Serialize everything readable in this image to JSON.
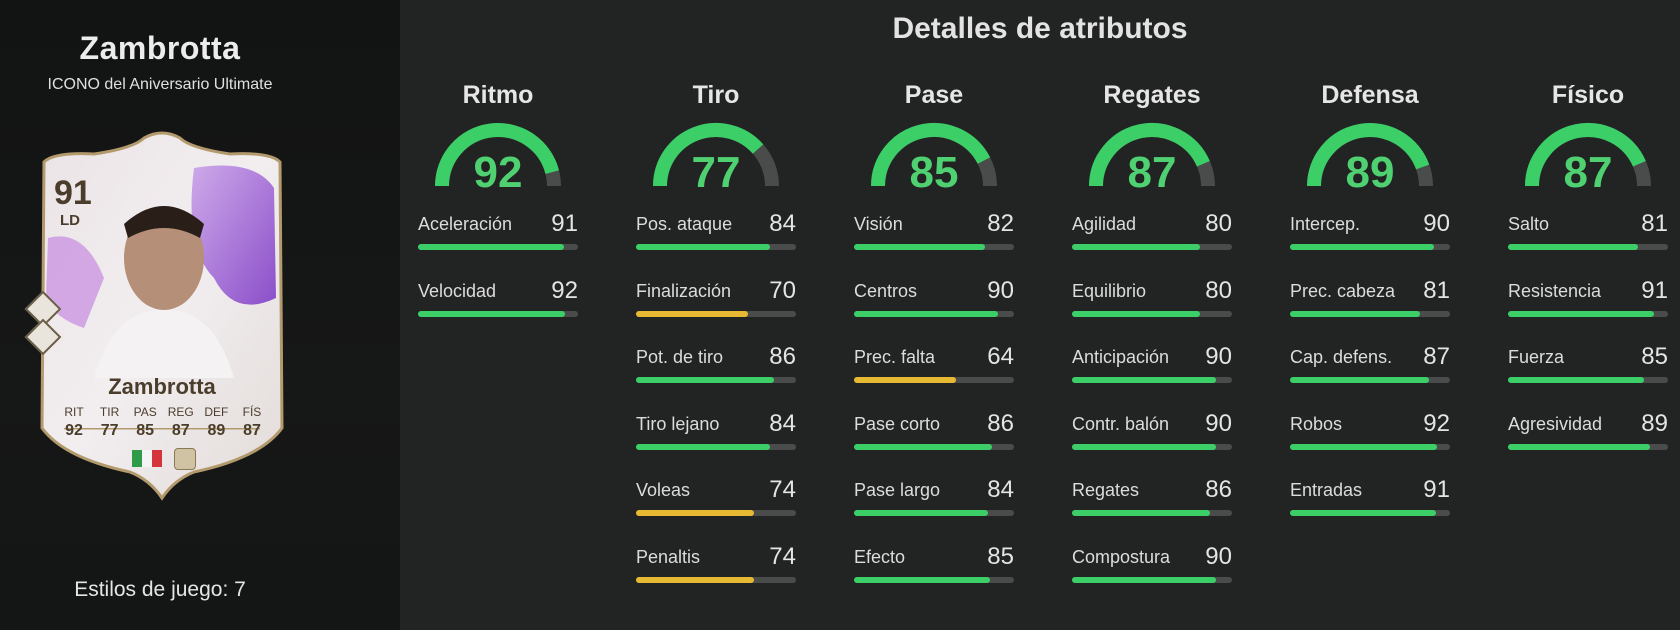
{
  "player": {
    "name": "Zambrotta",
    "card_type": "ICONO del Aniversario Ultimate",
    "rating": "91",
    "position": "LD",
    "card_name": "Zambrotta",
    "stat_labels": [
      "RIT",
      "TIR",
      "PAS",
      "REG",
      "DEF",
      "FÍS"
    ],
    "stat_values": [
      "92",
      "77",
      "85",
      "87",
      "89",
      "87"
    ],
    "playstyles": "Estilos de juego: 7"
  },
  "title": "Detalles de atributos",
  "colors": {
    "high": "#3ccf68",
    "mid": "#e8b933",
    "track": "#4a4c4b"
  },
  "categories": [
    {
      "name": "Ritmo",
      "value": 92,
      "attrs": [
        {
          "name": "Aceleración",
          "value": 91
        },
        {
          "name": "Velocidad",
          "value": 92
        }
      ]
    },
    {
      "name": "Tiro",
      "value": 77,
      "attrs": [
        {
          "name": "Pos. ataque",
          "value": 84
        },
        {
          "name": "Finalización",
          "value": 70
        },
        {
          "name": "Pot. de tiro",
          "value": 86
        },
        {
          "name": "Tiro lejano",
          "value": 84
        },
        {
          "name": "Voleas",
          "value": 74
        },
        {
          "name": "Penaltis",
          "value": 74
        }
      ]
    },
    {
      "name": "Pase",
      "value": 85,
      "attrs": [
        {
          "name": "Visión",
          "value": 82
        },
        {
          "name": "Centros",
          "value": 90
        },
        {
          "name": "Prec. falta",
          "value": 64
        },
        {
          "name": "Pase corto",
          "value": 86
        },
        {
          "name": "Pase largo",
          "value": 84
        },
        {
          "name": "Efecto",
          "value": 85
        }
      ]
    },
    {
      "name": "Regates",
      "value": 87,
      "attrs": [
        {
          "name": "Agilidad",
          "value": 80
        },
        {
          "name": "Equilibrio",
          "value": 80
        },
        {
          "name": "Anticipación",
          "value": 90
        },
        {
          "name": "Contr. balón",
          "value": 90
        },
        {
          "name": "Regates",
          "value": 86
        },
        {
          "name": "Compostura",
          "value": 90
        }
      ]
    },
    {
      "name": "Defensa",
      "value": 89,
      "attrs": [
        {
          "name": "Intercep.",
          "value": 90
        },
        {
          "name": "Prec. cabeza",
          "value": 81
        },
        {
          "name": "Cap. defens.",
          "value": 87
        },
        {
          "name": "Robos",
          "value": 92
        },
        {
          "name": "Entradas",
          "value": 91
        }
      ]
    },
    {
      "name": "Físico",
      "value": 87,
      "attrs": [
        {
          "name": "Salto",
          "value": 81
        },
        {
          "name": "Resistencia",
          "value": 91
        },
        {
          "name": "Fuerza",
          "value": 85
        },
        {
          "name": "Agresividad",
          "value": 89
        }
      ]
    }
  ]
}
